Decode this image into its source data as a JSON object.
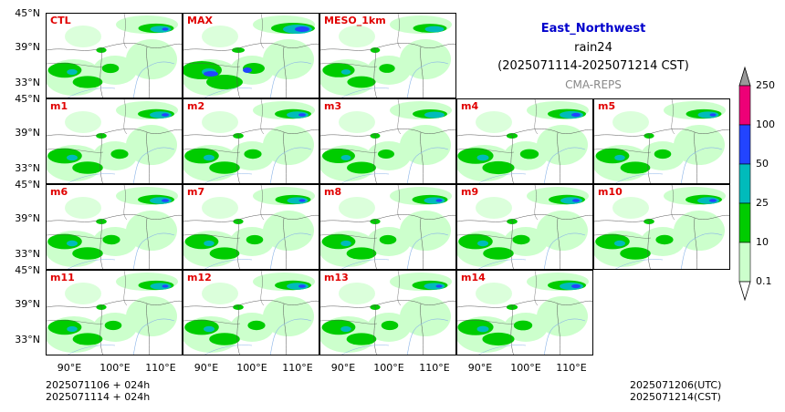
{
  "chart_data": {
    "type": "heatmap",
    "title": {
      "region": "East_Northwest",
      "variable": "rain24",
      "period": "(2025071114-2025071214 CST)",
      "source": "CMA-REPS"
    },
    "panels": [
      {
        "name": "CTL",
        "row": 0,
        "col": 0,
        "intensity": 0.55
      },
      {
        "name": "MAX",
        "row": 0,
        "col": 1,
        "intensity": 1.0
      },
      {
        "name": "MESO_1km",
        "row": 0,
        "col": 2,
        "intensity": 0.45
      },
      {
        "name": "m1",
        "row": 1,
        "col": 0,
        "intensity": 0.6
      },
      {
        "name": "m2",
        "row": 1,
        "col": 1,
        "intensity": 0.6
      },
      {
        "name": "m3",
        "row": 1,
        "col": 2,
        "intensity": 0.5
      },
      {
        "name": "m4",
        "row": 1,
        "col": 3,
        "intensity": 0.7
      },
      {
        "name": "m5",
        "row": 1,
        "col": 4,
        "intensity": 0.55
      },
      {
        "name": "m6",
        "row": 2,
        "col": 0,
        "intensity": 0.6
      },
      {
        "name": "m7",
        "row": 2,
        "col": 1,
        "intensity": 0.55
      },
      {
        "name": "m8",
        "row": 2,
        "col": 2,
        "intensity": 0.55
      },
      {
        "name": "m9",
        "row": 2,
        "col": 3,
        "intensity": 0.6
      },
      {
        "name": "m10",
        "row": 2,
        "col": 4,
        "intensity": 0.6
      },
      {
        "name": "m11",
        "row": 3,
        "col": 0,
        "intensity": 0.55
      },
      {
        "name": "m12",
        "row": 3,
        "col": 1,
        "intensity": 0.6
      },
      {
        "name": "m13",
        "row": 3,
        "col": 2,
        "intensity": 0.55
      },
      {
        "name": "m14",
        "row": 3,
        "col": 3,
        "intensity": 0.7
      }
    ],
    "lat_ticks": [
      "45°N",
      "39°N",
      "33°N"
    ],
    "lon_ticks": [
      "90°E",
      "100°E",
      "110°E"
    ],
    "colorbar": {
      "levels": [
        "0.1",
        "10",
        "25",
        "50",
        "100",
        "250"
      ],
      "colors": [
        "#ccffcc",
        "#00cc00",
        "#00bbbb",
        "#2244ff",
        "#ee0077"
      ],
      "under_color": "#ffffff",
      "over_color": "#999999"
    },
    "footer": {
      "init_utc": "2025071106  +  024h",
      "init_cst": "2025071114  +  024h",
      "valid_utc": "2025071206(UTC)",
      "valid_cst": "2025071214(CST)"
    }
  }
}
